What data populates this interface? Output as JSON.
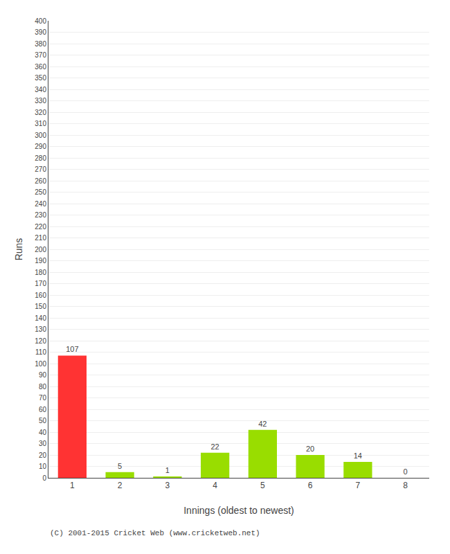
{
  "chart_data": {
    "type": "bar",
    "xlabel": "Innings (oldest to newest)",
    "ylabel": "Runs",
    "categories": [
      1,
      2,
      3,
      4,
      5,
      6,
      7,
      8
    ],
    "values": [
      107,
      5,
      1,
      22,
      42,
      20,
      14,
      0
    ],
    "colors": [
      "#ff3333",
      "#99dd00",
      "#99dd00",
      "#99dd00",
      "#99dd00",
      "#99dd00",
      "#99dd00",
      "#99dd00"
    ],
    "ylim": [
      0,
      400
    ],
    "yticks": [
      0,
      10,
      20,
      30,
      40,
      50,
      60,
      70,
      80,
      90,
      100,
      110,
      120,
      130,
      140,
      150,
      160,
      170,
      180,
      190,
      200,
      210,
      220,
      230,
      240,
      250,
      260,
      270,
      280,
      290,
      300,
      310,
      320,
      330,
      340,
      350,
      360,
      370,
      380,
      390,
      400
    ],
    "grid": true,
    "data_labels": true,
    "annotations": [
      "(C) 2001-2015 Cricket Web (www.cricketweb.net)"
    ]
  }
}
